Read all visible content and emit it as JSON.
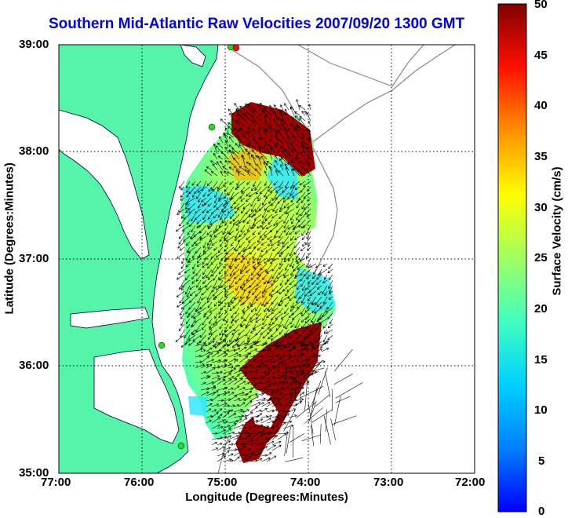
{
  "title": "Southern Mid-Atlantic Raw Velocities 2007/09/20 1300 GMT",
  "x_axis": {
    "label": "Longitude (Degrees:Minutes)",
    "ticks": [
      "77:00",
      "76:00",
      "75:00",
      "74:00",
      "73:00",
      "72:00"
    ]
  },
  "y_axis": {
    "label": "Latitude (Degrees:Minutes)",
    "ticks": [
      "39:00",
      "38:00",
      "37:00",
      "36:00",
      "35:00"
    ]
  },
  "colorbar": {
    "label": "Surface Velocity (cm/s)",
    "ticks": [
      "50",
      "45",
      "40",
      "35",
      "30",
      "25",
      "20",
      "15",
      "10",
      "5",
      "0"
    ],
    "range": [
      0,
      50
    ]
  },
  "colors": {
    "land": "#55f5a9",
    "water": "#ffffff",
    "title": "#0000ee",
    "station": "#22dd22",
    "station_red": "#ee1111"
  },
  "grid": "dotted",
  "legend": "colorbar-right"
}
